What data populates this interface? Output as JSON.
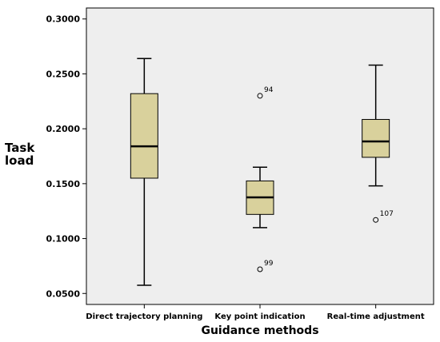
{
  "chart_data": {
    "type": "box",
    "xlabel": "Guidance methods",
    "ylabel": [
      "Task",
      "load"
    ],
    "ylim": [
      0.04,
      0.31
    ],
    "yticks": [
      "0.0500",
      "0.1000",
      "0.1500",
      "0.2000",
      "0.2500",
      "0.3000"
    ],
    "ytick_values": [
      0.05,
      0.1,
      0.15,
      0.2,
      0.25,
      0.3
    ],
    "box_color": "#d9d19c",
    "plot_background": "#eeeeee",
    "grid": false,
    "categories": [
      "Direct trajectory planning",
      "Key point indication",
      "Real-time adjustment"
    ],
    "boxes": [
      {
        "min": 0.0575,
        "q1": 0.155,
        "median": 0.184,
        "q3": 0.232,
        "max": 0.264,
        "outliers": []
      },
      {
        "min": 0.11,
        "q1": 0.122,
        "median": 0.1375,
        "q3": 0.1525,
        "max": 0.165,
        "outliers": [
          {
            "value": 0.23,
            "label": "94"
          },
          {
            "value": 0.072,
            "label": "99"
          }
        ]
      },
      {
        "min": 0.148,
        "q1": 0.174,
        "median": 0.1885,
        "q3": 0.2085,
        "max": 0.258,
        "outliers": [
          {
            "value": 0.117,
            "label": "107"
          }
        ]
      }
    ]
  }
}
